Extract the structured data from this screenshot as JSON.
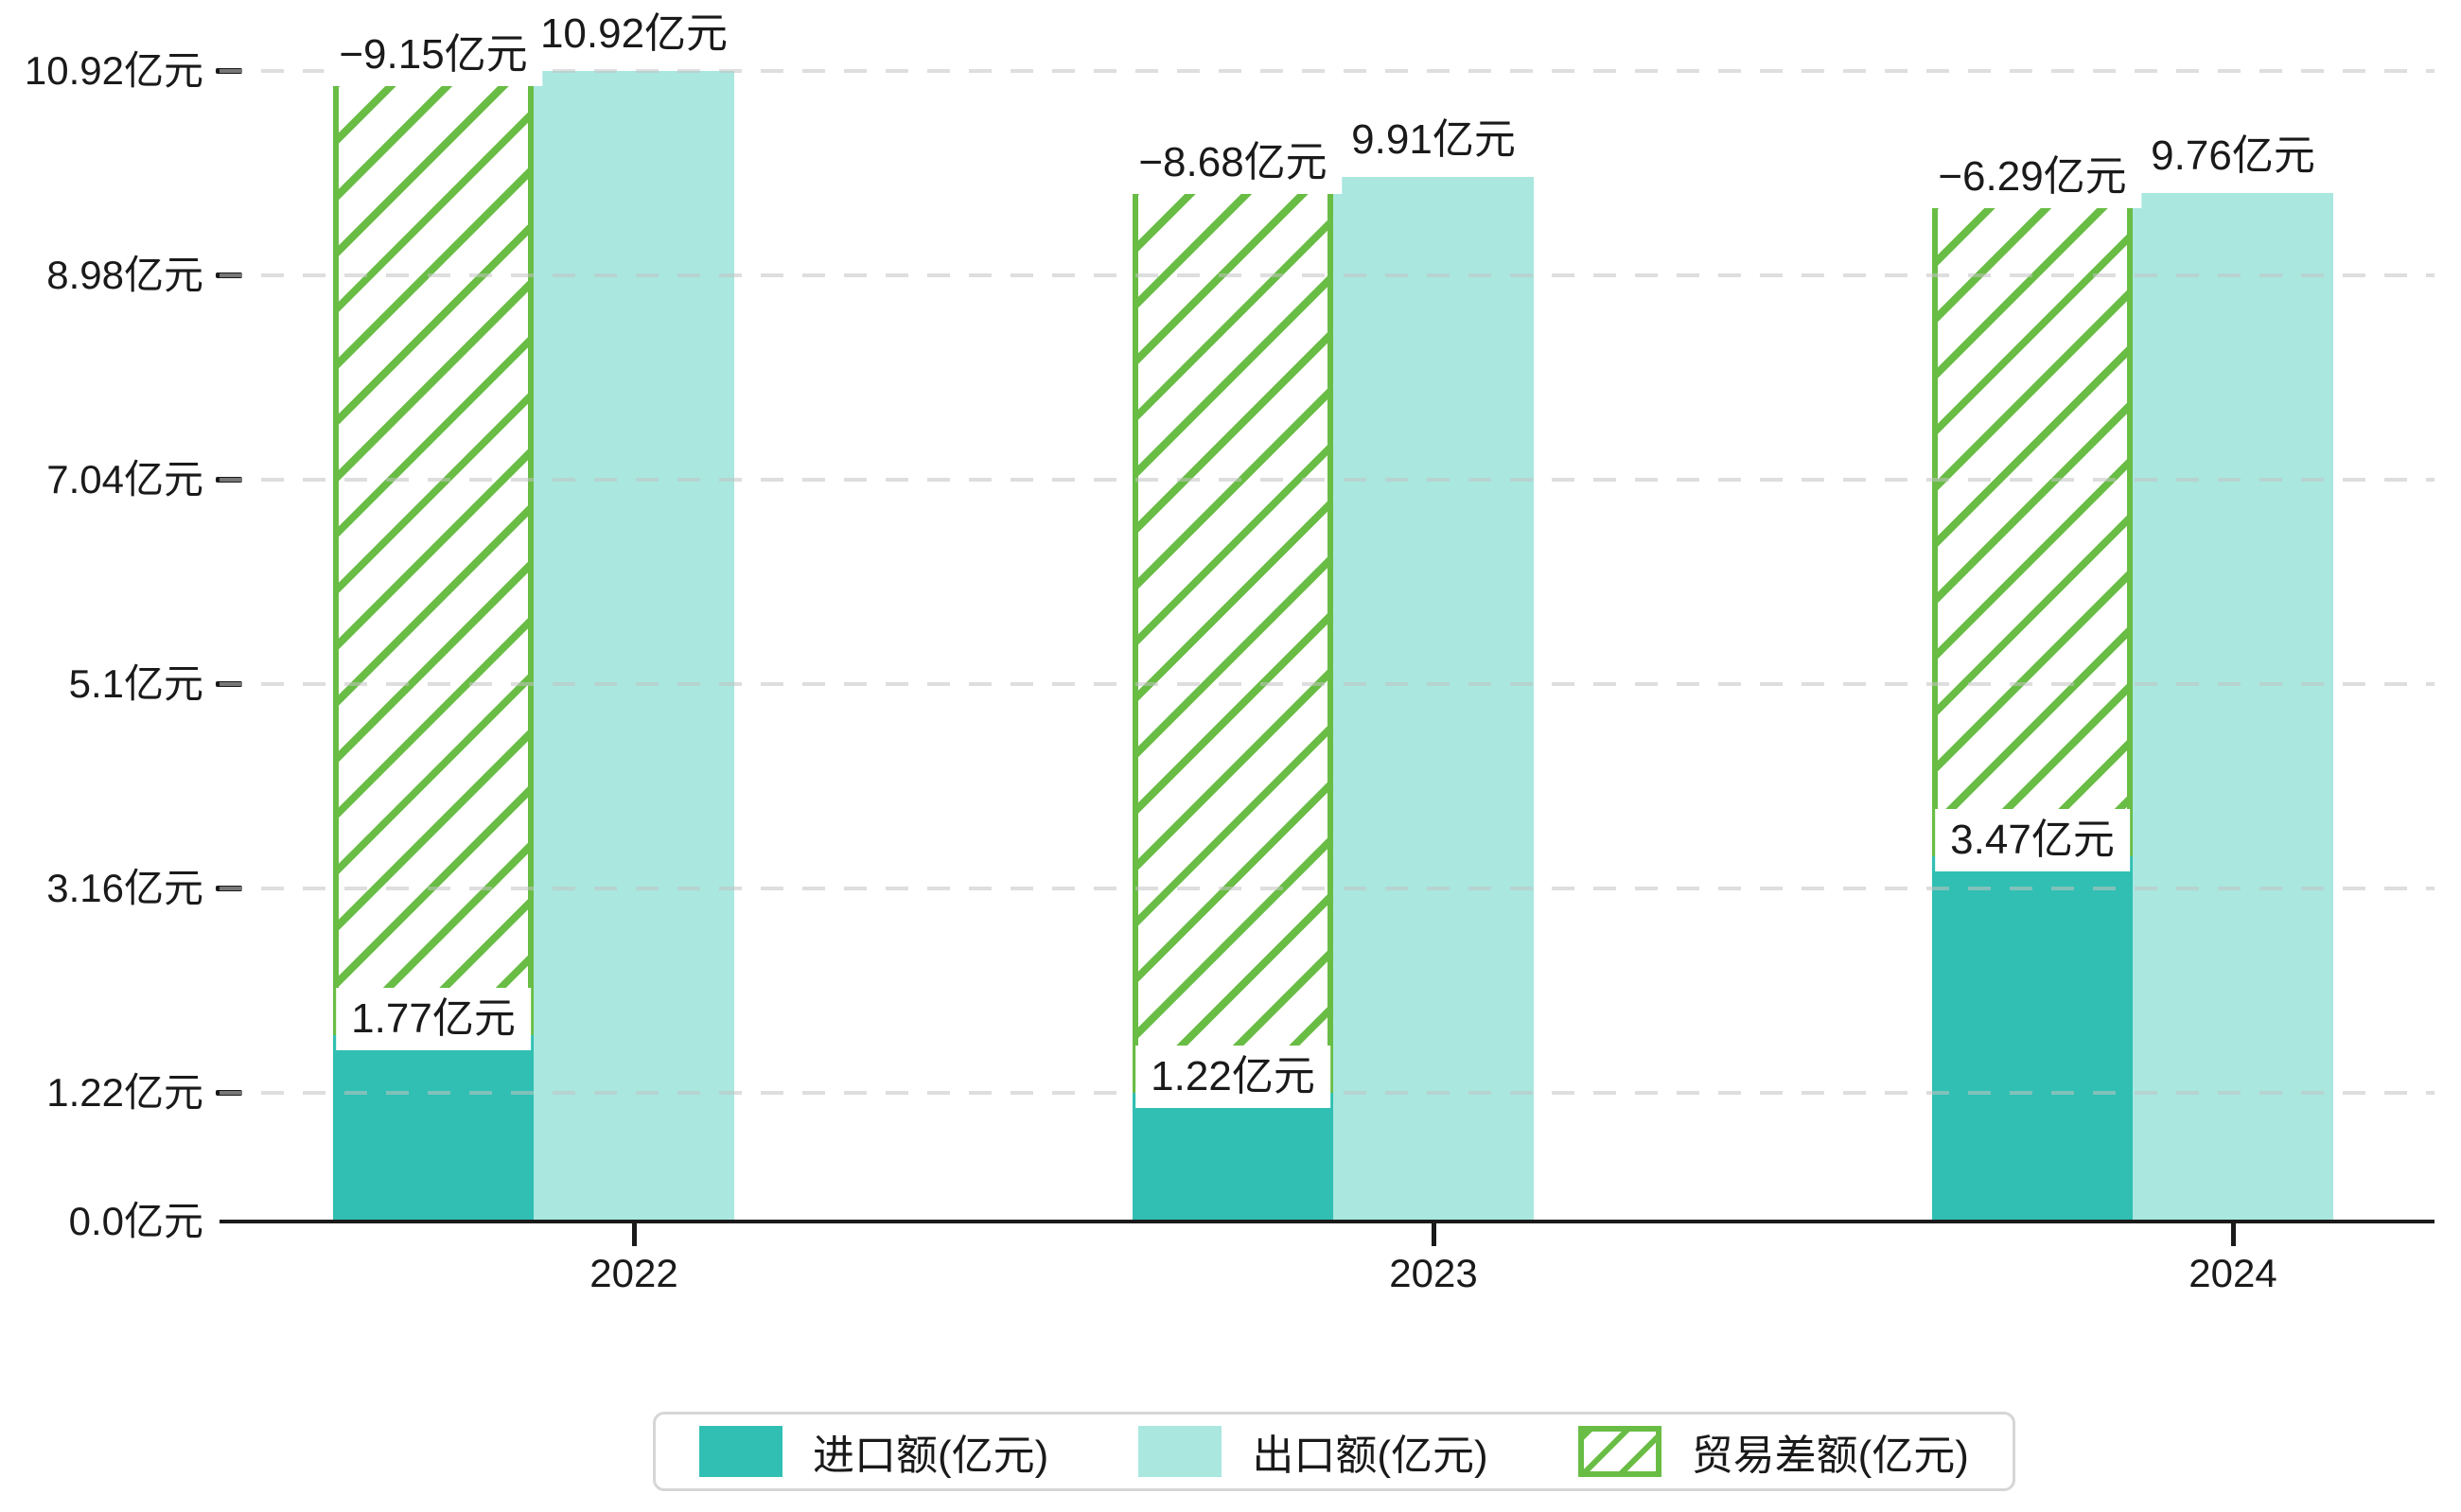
{
  "chart_data": {
    "type": "bar",
    "categories": [
      "2022",
      "2023",
      "2024"
    ],
    "series": [
      {
        "name": "进口额(亿元)",
        "key": "import",
        "values": [
          1.77,
          1.22,
          3.47
        ],
        "labels": [
          "1.77亿元",
          "1.22亿元",
          "3.47亿元"
        ],
        "color": "#30BFB2",
        "style": "solid"
      },
      {
        "name": "出口额(亿元)",
        "key": "export",
        "values": [
          10.92,
          9.91,
          9.76
        ],
        "labels": [
          "10.92亿元",
          "9.91亿元",
          "9.76亿元"
        ],
        "color": "#A9E7DF",
        "style": "solid"
      },
      {
        "name": "贸易差额(亿元)",
        "key": "trade-balance",
        "values": [
          -9.15,
          -8.68,
          -6.29
        ],
        "labels": [
          "−9.15亿元",
          "−8.68亿元",
          "−6.29亿元"
        ],
        "color": "#69BD45",
        "style": "hatched"
      }
    ],
    "yticks": [
      {
        "value": 0,
        "label": "0.0亿元"
      },
      {
        "value": 1.22,
        "label": "1.22亿元"
      },
      {
        "value": 3.16,
        "label": "3.16亿元"
      },
      {
        "value": 5.1,
        "label": "5.1亿元"
      },
      {
        "value": 7.04,
        "label": "7.04亿元"
      },
      {
        "value": 8.98,
        "label": "8.98亿元"
      },
      {
        "value": 10.92,
        "label": "10.92亿元"
      }
    ],
    "ylim": [
      0,
      11.7
    ],
    "unit": "亿元",
    "grid": "dashed-horizontal",
    "legend_position": "bottom-center",
    "layout_hint": "balance series drawn as hatched segment stacked on import bar up to export total; export bar adjacent right, centered on year tick",
    "colors": {
      "import": "#30BFB2",
      "export": "#A9E7DF",
      "balance": "#69BD45",
      "axis": "#1a1a1a",
      "grid": "#e4e4e4",
      "legend_border": "#d6d6d6",
      "background": "#ffffff"
    }
  }
}
